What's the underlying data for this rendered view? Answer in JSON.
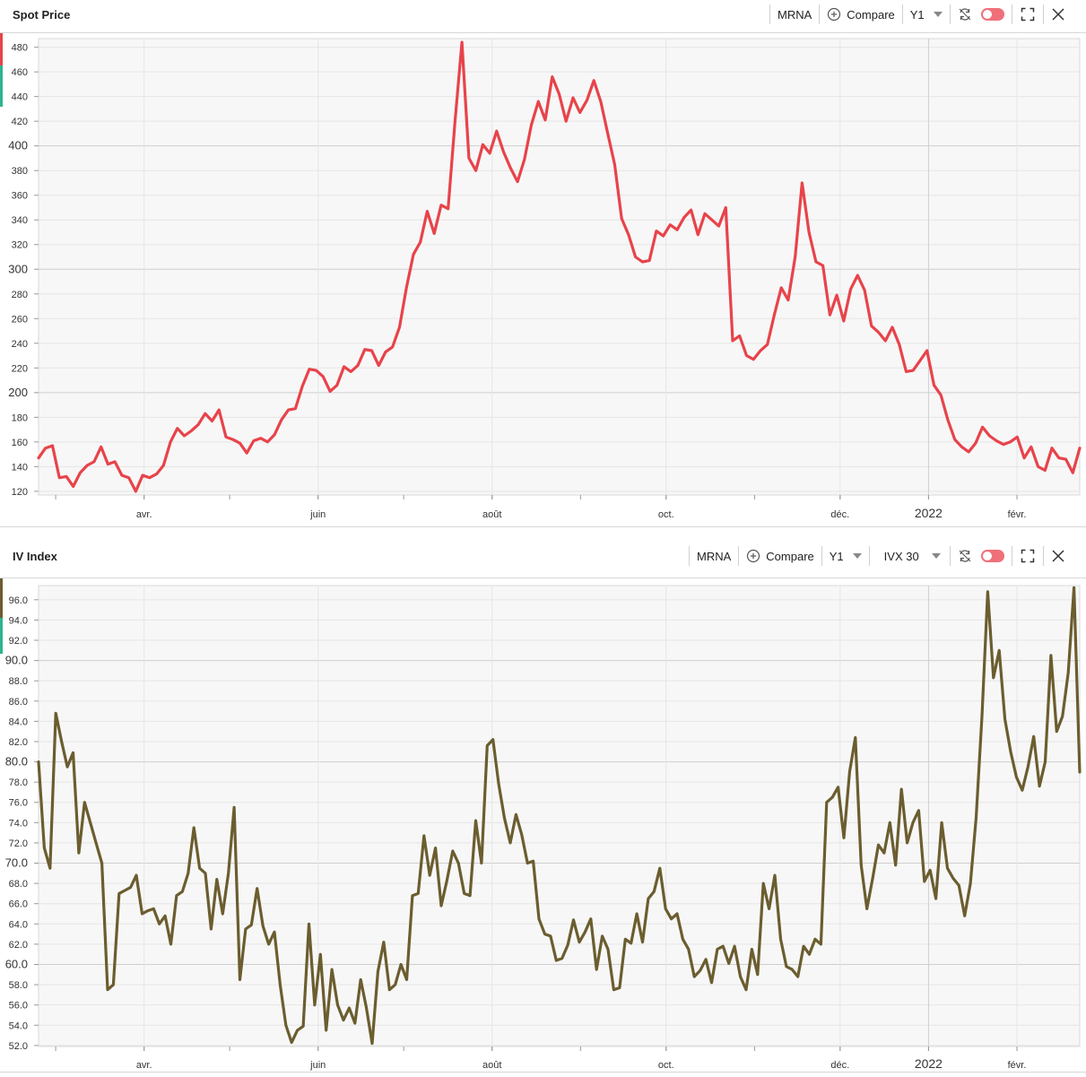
{
  "colors": {
    "spot_line": "#e8434a",
    "iv_line": "#6b5d2f",
    "plot_bg": "#f7f7f7",
    "grid_major": "#cfcfcf",
    "grid_minor": "#e6e6e6",
    "toggle": "#f0707a"
  },
  "panels": [
    {
      "title": "Spot Price",
      "ticker": "MRNA",
      "compare_label": "Compare",
      "period": "Y1",
      "extra_select": null,
      "icons": [
        "plus-circle-icon",
        "sync-icon",
        "toggle-switch",
        "expand-icon",
        "close-icon"
      ]
    },
    {
      "title": "IV Index",
      "ticker": "MRNA",
      "compare_label": "Compare",
      "period": "Y1",
      "extra_select": "IVX 30",
      "icons": [
        "plus-circle-icon",
        "sync-icon",
        "toggle-switch",
        "expand-icon",
        "close-icon"
      ]
    }
  ],
  "chart_data": [
    {
      "type": "line",
      "title": "Spot Price",
      "series": [
        {
          "values": [
            147,
            155,
            157,
            131,
            132,
            124,
            135,
            141,
            144,
            156,
            142,
            144,
            133,
            131,
            120,
            133,
            131,
            134,
            141,
            160,
            171,
            165,
            169,
            174,
            183,
            177,
            186,
            164,
            162,
            159,
            151,
            161,
            163,
            160,
            166,
            178,
            186,
            187,
            205,
            219,
            218,
            213,
            201,
            206,
            221,
            217,
            222,
            235,
            234,
            222,
            233,
            237,
            253,
            285,
            312,
            322,
            347,
            329,
            352,
            349,
            420,
            484,
            390,
            380,
            401,
            394,
            412,
            395,
            382,
            371,
            389,
            417,
            436,
            421,
            456,
            442,
            420,
            439,
            427,
            437,
            453,
            436,
            410,
            385,
            341,
            328,
            310,
            306,
            307,
            331,
            327,
            336,
            332,
            342,
            348,
            328,
            345,
            340,
            335,
            350,
            242,
            246,
            230,
            227,
            234,
            239,
            263,
            285,
            275,
            310,
            370,
            330,
            306,
            303,
            263,
            279,
            258,
            284,
            295,
            283,
            254,
            249,
            242,
            253,
            239,
            217,
            218,
            226,
            234,
            206,
            198,
            178,
            162,
            156,
            152,
            159,
            172,
            165,
            161,
            158,
            160,
            164,
            147,
            156,
            140,
            137,
            155,
            147,
            146,
            135,
            155
          ]
        }
      ],
      "x_start": "2021-02-23",
      "x_end": "2022-02-23",
      "x_tick_labels": [
        "avr.",
        "juin",
        "août",
        "oct.",
        "déc.",
        "2022",
        "févr."
      ],
      "x_tick_dates": [
        "2021-04-01",
        "2021-06-01",
        "2021-08-01",
        "2021-10-01",
        "2021-12-01",
        "2022-01-01",
        "2022-02-01"
      ],
      "y_tick_labels": [
        "120",
        "140",
        "160",
        "180",
        "200",
        "220",
        "240",
        "260",
        "280",
        "300",
        "320",
        "340",
        "360",
        "380",
        "400",
        "420",
        "440",
        "460",
        "480"
      ],
      "y_major_labels": [
        "200",
        "300",
        "400"
      ],
      "ylim": [
        117,
        487
      ],
      "grid": true
    },
    {
      "type": "line",
      "title": "IV Index",
      "series": [
        {
          "values": [
            80.0,
            71.5,
            69.5,
            84.8,
            82.0,
            79.5,
            80.9,
            71.0,
            76.0,
            74.0,
            72.0,
            70.0,
            57.5,
            58.0,
            67.0,
            67.3,
            67.6,
            68.8,
            65.0,
            65.3,
            65.5,
            64.0,
            64.8,
            62.0,
            66.8,
            67.2,
            69.0,
            73.5,
            69.5,
            69.0,
            63.5,
            68.4,
            65.0,
            69.0,
            75.5,
            58.5,
            63.5,
            63.9,
            67.5,
            63.8,
            62.0,
            63.2,
            58.0,
            54.0,
            52.3,
            53.5,
            53.9,
            64.0,
            56.0,
            61.0,
            53.5,
            59.5,
            56.0,
            54.5,
            55.7,
            54.2,
            58.5,
            55.7,
            52.2,
            59.3,
            62.2,
            57.5,
            58.0,
            60.0,
            58.5,
            66.8,
            67.0,
            72.7,
            68.8,
            71.5,
            65.8,
            68.3,
            71.2,
            70.0,
            67.0,
            66.8,
            74.2,
            70.0,
            81.6,
            82.2,
            77.8,
            74.4,
            72.0,
            74.8,
            72.8,
            70.0,
            70.2,
            64.5,
            63.0,
            62.8,
            60.4,
            60.6,
            61.9,
            64.4,
            62.2,
            63.2,
            64.5,
            59.5,
            62.8,
            61.5,
            57.5,
            57.7,
            62.5,
            62.1,
            65.0,
            62.2,
            66.5,
            67.2,
            69.5,
            65.5,
            64.5,
            65.0,
            62.5,
            61.5,
            58.8,
            59.4,
            60.5,
            58.2,
            61.5,
            61.8,
            60.1,
            61.8,
            58.8,
            57.5,
            61.5,
            59.0,
            68.0,
            65.5,
            68.8,
            62.5,
            59.8,
            59.5,
            58.8,
            61.8,
            61.0,
            62.5,
            62.0,
            76.0,
            76.5,
            77.5,
            72.5,
            79.0,
            82.4,
            69.8,
            65.5,
            68.5,
            71.8,
            71.0,
            74.0,
            69.8,
            77.3,
            72.0,
            74.0,
            75.2,
            68.2,
            69.3,
            66.5,
            74.0,
            69.5,
            68.5,
            67.8,
            64.8,
            68.0,
            74.5,
            84.5,
            96.8,
            88.3,
            91.0,
            84.2,
            81.0,
            78.5,
            77.2,
            79.5,
            82.5,
            77.6,
            80.0,
            90.5,
            83.0,
            84.5,
            88.8,
            97.2,
            79.0
          ]
        }
      ],
      "x_start": "2021-02-23",
      "x_end": "2022-02-23",
      "x_tick_labels": [
        "avr.",
        "juin",
        "août",
        "oct.",
        "déc.",
        "2022",
        "févr."
      ],
      "x_tick_dates": [
        "2021-04-01",
        "2021-06-01",
        "2021-08-01",
        "2021-10-01",
        "2021-12-01",
        "2022-01-01",
        "2022-02-01"
      ],
      "y_tick_labels": [
        "52.0",
        "54.0",
        "56.0",
        "58.0",
        "60.0",
        "62.0",
        "64.0",
        "66.0",
        "68.0",
        "70.0",
        "72.0",
        "74.0",
        "76.0",
        "78.0",
        "80.0",
        "82.0",
        "84.0",
        "86.0",
        "88.0",
        "90.0",
        "92.0",
        "94.0",
        "96.0"
      ],
      "y_major_labels": [
        "60.0",
        "70.0",
        "80.0",
        "90.0"
      ],
      "ylim": [
        51.9,
        97.4
      ],
      "grid": true
    }
  ]
}
